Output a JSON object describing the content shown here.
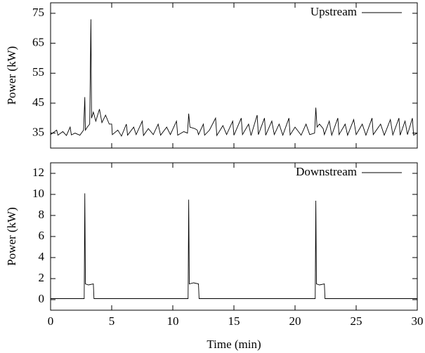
{
  "chart_data": [
    {
      "type": "line",
      "ylabel": "Power (kW)",
      "xlim": [
        0,
        30
      ],
      "xticks": [
        0,
        5,
        10,
        15,
        20,
        25,
        30
      ],
      "show_xtick_labels": false,
      "ylim": [
        30,
        78.5
      ],
      "yticks": [
        35,
        45,
        55,
        65,
        75
      ],
      "legend": "upper right",
      "x": [
        0,
        0.5,
        0.6,
        1.0,
        1.3,
        1.6,
        1.7,
        2.0,
        2.4,
        2.7,
        2.8,
        2.85,
        3.0,
        3.2,
        3.3,
        3.35,
        3.5,
        3.7,
        4.0,
        4.2,
        4.5,
        4.8,
        5.0,
        5.05,
        5.5,
        5.8,
        6.2,
        6.3,
        6.8,
        7.0,
        7.5,
        7.6,
        8.0,
        8.4,
        8.8,
        9.0,
        9.5,
        9.8,
        10.3,
        10.4,
        10.9,
        11.2,
        11.3,
        11.4,
        11.8,
        12.0,
        12.1,
        12.5,
        12.6,
        13.0,
        13.5,
        13.6,
        14.1,
        14.4,
        14.9,
        15.0,
        15.6,
        15.7,
        16.2,
        16.4,
        16.9,
        17.0,
        17.5,
        17.6,
        18.1,
        18.3,
        18.7,
        19.0,
        19.5,
        19.6,
        20.0,
        20.5,
        20.9,
        21.2,
        21.6,
        21.7,
        21.8,
        22.0,
        22.3,
        22.4,
        22.8,
        23.0,
        23.5,
        23.6,
        24.1,
        24.3,
        24.8,
        25.0,
        25.5,
        25.8,
        26.3,
        26.4,
        27.0,
        27.3,
        27.8,
        28.0,
        28.5,
        28.6,
        29.0,
        29.2,
        29.6,
        29.7,
        30
      ],
      "series": [
        {
          "name": "Upstream",
          "color": "#000000",
          "values": [
            34.5,
            36,
            34.3,
            35.5,
            34.2,
            37,
            34.4,
            35,
            34.3,
            36,
            47,
            36,
            37,
            38,
            73,
            40,
            42,
            39,
            43,
            38.5,
            41,
            38,
            38,
            34.5,
            36,
            34,
            38,
            34.3,
            37,
            34.5,
            39,
            34.2,
            36.5,
            34.5,
            38,
            34.3,
            37,
            34.5,
            39,
            34.3,
            35.5,
            35,
            41.5,
            37,
            36.5,
            36,
            34.5,
            38,
            34.3,
            36,
            40,
            34.2,
            37.5,
            34.5,
            39,
            34.3,
            40,
            34.5,
            38,
            34.2,
            41,
            34.5,
            40,
            34.3,
            39,
            34.5,
            38,
            34.3,
            40,
            34.4,
            37,
            34.3,
            38,
            34.5,
            35,
            43.5,
            37,
            38,
            36.5,
            34.5,
            39,
            34.3,
            40,
            34.5,
            38,
            34.3,
            39.5,
            34.5,
            38,
            34.3,
            40,
            34.5,
            38,
            34.3,
            39.5,
            34.4,
            40,
            34.3,
            39,
            34.5,
            40,
            34.3,
            35
          ]
        }
      ]
    },
    {
      "type": "line",
      "ylabel": "Power (kW)",
      "xlabel": "Time (min)",
      "xlim": [
        0,
        30
      ],
      "xticks": [
        0,
        5,
        10,
        15,
        20,
        25,
        30
      ],
      "show_xtick_labels": true,
      "ylim": [
        -1,
        13
      ],
      "yticks": [
        0,
        2,
        4,
        6,
        8,
        10,
        12
      ],
      "legend": "upper right",
      "x": [
        0,
        2.75,
        2.8,
        2.85,
        3.1,
        3.5,
        3.55,
        11.25,
        11.3,
        11.35,
        11.7,
        12.1,
        12.15,
        21.65,
        21.7,
        21.75,
        22.0,
        22.4,
        22.45,
        30
      ],
      "series": [
        {
          "name": "Downstream",
          "color": "#000000",
          "values": [
            0.1,
            0.1,
            10.1,
            1.5,
            1.4,
            1.5,
            0.1,
            0.1,
            9.5,
            1.5,
            1.6,
            1.5,
            0.1,
            0.1,
            9.4,
            1.5,
            1.4,
            1.5,
            0.1,
            0.1
          ]
        }
      ]
    }
  ]
}
